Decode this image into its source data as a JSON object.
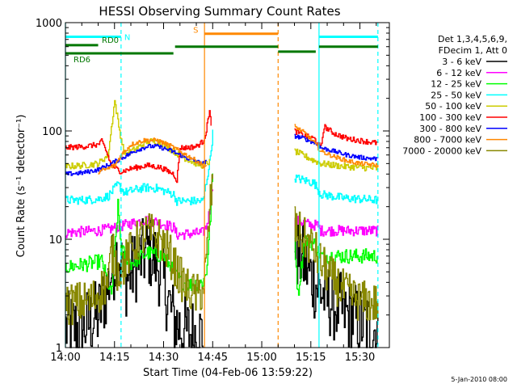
{
  "chart_data": {
    "type": "line",
    "title": "HESSI Observing Summary Count Rates",
    "xlabel": "Start Time (04-Feb-06 13:59:22)",
    "ylabel": "Count Rate (s⁻¹ detector⁻¹)",
    "xlim": [
      0,
      99
    ],
    "xticks": [
      {
        "min": 0,
        "label": "14:00"
      },
      {
        "min": 15,
        "label": "14:15"
      },
      {
        "min": 30,
        "label": "14:30"
      },
      {
        "min": 45,
        "label": "14:45"
      },
      {
        "min": 60,
        "label": "15:00"
      },
      {
        "min": 75,
        "label": "15:15"
      },
      {
        "min": 90,
        "label": "15:30"
      }
    ],
    "ylim": [
      1,
      1000
    ],
    "yscale": "log",
    "yticks": [
      {
        "value": 1,
        "label": "1"
      },
      {
        "value": 10,
        "label": "10"
      },
      {
        "value": 100,
        "label": "100"
      },
      {
        "value": 1000,
        "label": "1000"
      }
    ],
    "legend": {
      "placement": "right",
      "header": [
        "Det 1,3,4,5,6,9,",
        "FDecim 1, Att 0"
      ]
    },
    "series": [
      {
        "name": "3 - 6 keV",
        "color": "#000000",
        "noise": 0.35,
        "floor": 1,
        "segments": [
          [
            [
              0,
              1.5
            ],
            [
              5,
              1.5
            ],
            [
              10,
              2
            ],
            [
              12,
              3
            ],
            [
              14,
              5
            ],
            [
              16,
              8
            ],
            [
              18,
              4
            ],
            [
              20,
              5
            ],
            [
              25,
              8
            ],
            [
              28,
              6
            ],
            [
              31,
              3
            ],
            [
              33,
              1.8
            ],
            [
              36,
              1.4
            ],
            [
              42,
              1.3
            ]
          ],
          [
            [
              70,
              8
            ],
            [
              73,
              6
            ],
            [
              76,
              4
            ],
            [
              79,
              3
            ],
            [
              82,
              2.5
            ],
            [
              86,
              2
            ],
            [
              90,
              1.7
            ],
            [
              94,
              1.5
            ],
            [
              95.5,
              1.4
            ]
          ]
        ]
      },
      {
        "name": "6 - 12 keV",
        "color": "#ff00ff",
        "noise": 0.05,
        "floor": 1,
        "segments": [
          [
            [
              0,
              11.5
            ],
            [
              10,
              12
            ],
            [
              14,
              12.5
            ],
            [
              18,
              13.5
            ],
            [
              24,
              15
            ],
            [
              28,
              14.5
            ],
            [
              33,
              12.8
            ],
            [
              34,
              11
            ],
            [
              42,
              11.5
            ],
            [
              43,
              13
            ],
            [
              44,
              18
            ],
            [
              45,
              30
            ]
          ],
          [
            [
              70,
              15
            ],
            [
              72,
              14.5
            ],
            [
              75,
              13.5
            ],
            [
              77,
              13.5
            ],
            [
              78,
              12
            ],
            [
              85,
              12
            ],
            [
              95.5,
              12
            ]
          ]
        ]
      },
      {
        "name": "12 - 25 keV",
        "color": "#00ff00",
        "noise": 0.07,
        "floor": 1,
        "segments": [
          [
            [
              0,
              5.5
            ],
            [
              8,
              6
            ],
            [
              11,
              6.3
            ],
            [
              12,
              5
            ],
            [
              14,
              3
            ],
            [
              16,
              20
            ],
            [
              17,
              8
            ],
            [
              20,
              6
            ],
            [
              25,
              7.5
            ],
            [
              30,
              7
            ],
            [
              33,
              5
            ],
            [
              34,
              4.5
            ],
            [
              36,
              4
            ],
            [
              38,
              3.8
            ],
            [
              42,
              4
            ],
            [
              43,
              5
            ],
            [
              44,
              12
            ],
            [
              45,
              40
            ]
          ],
          [
            [
              70,
              10
            ],
            [
              71,
              3
            ],
            [
              73,
              10
            ],
            [
              76,
              9
            ],
            [
              78,
              7
            ],
            [
              85,
              7
            ],
            [
              95.5,
              7
            ]
          ]
        ]
      },
      {
        "name": "25 - 50 keV",
        "color": "#00ffff",
        "noise": 0.04,
        "floor": 1,
        "segments": [
          [
            [
              0,
              23
            ],
            [
              5,
              23
            ],
            [
              10,
              23.5
            ],
            [
              13,
              25
            ],
            [
              16,
              32
            ],
            [
              18,
              27
            ],
            [
              24,
              30
            ],
            [
              28,
              29.5
            ],
            [
              33,
              26
            ],
            [
              34,
              22.5
            ],
            [
              42,
              22.5
            ],
            [
              44,
              50
            ],
            [
              45,
              95
            ]
          ],
          [
            [
              70,
              37
            ],
            [
              73,
              35
            ],
            [
              76,
              33
            ],
            [
              78,
              26
            ],
            [
              85,
              24
            ],
            [
              95.5,
              23
            ]
          ]
        ]
      },
      {
        "name": "50 - 100 keV",
        "color": "#cccc00",
        "noise": 0.03,
        "floor": 1,
        "segments": [
          [
            [
              0,
              47
            ],
            [
              5,
              48
            ],
            [
              10,
              50
            ],
            [
              13,
              60
            ],
            [
              15,
              190
            ],
            [
              16.5,
              100
            ],
            [
              18,
              60
            ],
            [
              22,
              70
            ],
            [
              25,
              80
            ],
            [
              28,
              80
            ],
            [
              30,
              75
            ],
            [
              34,
              62
            ],
            [
              37,
              55
            ],
            [
              40,
              50
            ],
            [
              42,
              48
            ],
            [
              44,
              52
            ]
          ],
          [
            [
              70,
              65
            ],
            [
              75,
              55
            ],
            [
              78,
              50
            ],
            [
              85,
              47
            ],
            [
              95.5,
              45
            ]
          ]
        ]
      },
      {
        "name": "100 - 300 keV",
        "color": "#ff0000",
        "noise": 0.025,
        "floor": 1,
        "segments": [
          [
            [
              0,
              70
            ],
            [
              6,
              72
            ],
            [
              10,
              75
            ],
            [
              11,
              80
            ],
            [
              12,
              70
            ],
            [
              14,
              48
            ],
            [
              17,
              42
            ],
            [
              20,
              45
            ],
            [
              25,
              48
            ],
            [
              29,
              46
            ],
            [
              33,
              40
            ],
            [
              34,
              35
            ],
            [
              35,
              70
            ],
            [
              37,
              70
            ],
            [
              40,
              72
            ],
            [
              42,
              80
            ],
            [
              43,
              100
            ],
            [
              44,
              160
            ],
            [
              44.5,
              110
            ]
          ],
          [
            [
              70,
              100
            ],
            [
              73,
              90
            ],
            [
              76,
              85
            ],
            [
              78,
              70
            ],
            [
              79,
              110
            ],
            [
              82,
              95
            ],
            [
              86,
              85
            ],
            [
              95.5,
              77
            ]
          ]
        ]
      },
      {
        "name": "300 - 800 keV",
        "color": "#0000ff",
        "noise": 0.02,
        "floor": 1,
        "segments": [
          [
            [
              0,
              40
            ],
            [
              5,
              41
            ],
            [
              10,
              44
            ],
            [
              14,
              50
            ],
            [
              18,
              58
            ],
            [
              22,
              67
            ],
            [
              25,
              72
            ],
            [
              28,
              72
            ],
            [
              32,
              66
            ],
            [
              36,
              58
            ],
            [
              40,
              52
            ],
            [
              42,
              50
            ],
            [
              43,
              52
            ]
          ],
          [
            [
              70,
              90
            ],
            [
              73,
              85
            ],
            [
              76,
              78
            ],
            [
              78,
              70
            ],
            [
              82,
              65
            ],
            [
              86,
              60
            ],
            [
              90,
              57
            ],
            [
              95.5,
              55
            ]
          ]
        ]
      },
      {
        "name": "800 - 7000 keV",
        "color": "#ff8800",
        "noise": 0.02,
        "floor": 1,
        "segments": [
          [
            [
              10,
              42
            ],
            [
              13,
              45
            ],
            [
              15,
              48
            ],
            [
              17,
              60
            ],
            [
              20,
              75
            ],
            [
              24,
              82
            ],
            [
              28,
              82
            ],
            [
              32,
              73
            ],
            [
              36,
              62
            ],
            [
              40,
              53
            ],
            [
              42,
              48
            ],
            [
              43,
              47
            ]
          ],
          [
            [
              70,
              110
            ],
            [
              73,
              96
            ],
            [
              76,
              78
            ],
            [
              78,
              65
            ],
            [
              82,
              58
            ],
            [
              86,
              53
            ],
            [
              90,
              50
            ],
            [
              95.5,
              48
            ]
          ]
        ]
      },
      {
        "name": "7000 - 20000 keV",
        "color": "#888800",
        "noise": 0.2,
        "floor": 1,
        "segments": [
          [
            [
              0,
              2.5
            ],
            [
              8,
              2.7
            ],
            [
              11,
              3.5
            ],
            [
              13,
              4
            ],
            [
              14,
              8
            ],
            [
              16,
              5
            ],
            [
              18,
              6
            ],
            [
              21,
              9
            ],
            [
              25,
              11.5
            ],
            [
              29,
              10
            ],
            [
              32,
              7
            ],
            [
              34,
              5
            ],
            [
              37,
              3.5
            ],
            [
              40,
              3
            ],
            [
              42,
              3.5
            ],
            [
              43,
              6
            ],
            [
              44,
              18
            ],
            [
              45,
              40
            ]
          ],
          [
            [
              70,
              13
            ],
            [
              73,
              10
            ],
            [
              76,
              8
            ],
            [
              78,
              6
            ],
            [
              81,
              4.5
            ],
            [
              84,
              3.5
            ],
            [
              87,
              3
            ],
            [
              90,
              2.7
            ],
            [
              95.5,
              2.5
            ]
          ]
        ]
      }
    ],
    "flags": [
      {
        "label": "N",
        "color": "#00ffff",
        "y_value": 740,
        "dash": true,
        "x": [
          0,
          17
        ]
      },
      {
        "label": "",
        "color": "#00ffff",
        "y_value": 740,
        "dash": false,
        "x": [
          77.5,
          95.5
        ]
      },
      {
        "label": "RD0",
        "color": "#007700",
        "y_value": 620,
        "dash": false,
        "x": [
          0,
          10
        ]
      },
      {
        "label": "RD6",
        "color": "#007700",
        "y_value": 520,
        "dash": false,
        "x": [
          0,
          33
        ]
      },
      {
        "label": "",
        "color": "#007700",
        "y_value": 600,
        "dash": false,
        "x": [
          33.5,
          65
        ]
      },
      {
        "label": "",
        "color": "#007700",
        "y_value": 540,
        "dash": false,
        "x": [
          65,
          76.5
        ]
      },
      {
        "label": "",
        "color": "#007700",
        "y_value": 600,
        "dash": false,
        "x": [
          77.5,
          95.5
        ]
      },
      {
        "label": "S",
        "color": "#ff8800",
        "y_value": 790,
        "dash": false,
        "x": [
          42.5,
          65
        ]
      }
    ],
    "vlines": [
      {
        "x": 0,
        "color": "#00ffff",
        "dash": false
      },
      {
        "x": 17,
        "color": "#00ffff",
        "dash": true
      },
      {
        "x": 42.5,
        "color": "#ff8800",
        "dash": false
      },
      {
        "x": 65,
        "color": "#ff8800",
        "dash": true
      },
      {
        "x": 77.5,
        "color": "#00ffff",
        "dash": false
      },
      {
        "x": 95.5,
        "color": "#00ffff",
        "dash": true
      }
    ],
    "grid": false
  },
  "timestamp": "5-Jan-2010 08:00"
}
